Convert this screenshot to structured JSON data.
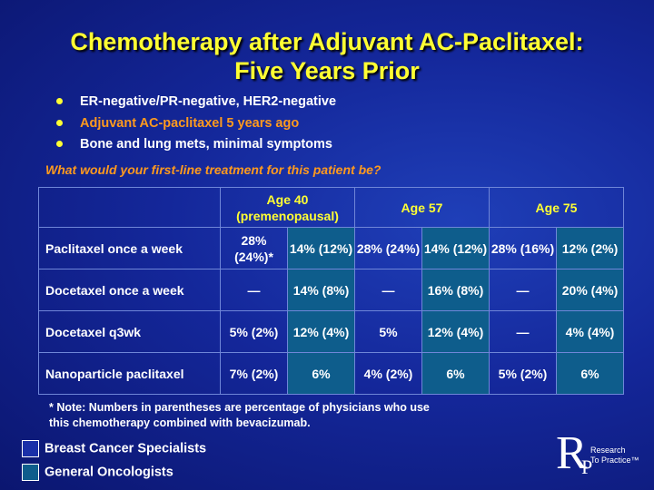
{
  "title_line1": "Chemotherapy after Adjuvant AC-Paclitaxel:",
  "title_line2": "Five Years Prior",
  "bullets": [
    {
      "text": "ER-negative/PR-negative, HER2-negative",
      "color": "#ffffff"
    },
    {
      "text": "Adjuvant AC-paclitaxel 5 years ago",
      "color": "#ff9a1e"
    },
    {
      "text": "Bone and lung mets, minimal symptoms",
      "color": "#ffffff"
    }
  ],
  "question": "What would your first-line treatment for this patient be?",
  "table": {
    "headers": [
      "Age 40 (premenopausal)",
      "Age 57",
      "Age 75"
    ],
    "rows": [
      {
        "label": "Paclitaxel once a week",
        "cells": [
          "28% (24%)*",
          "14% (12%)",
          "28% (24%)",
          "14% (12%)",
          "28% (16%)",
          "12% (2%)"
        ]
      },
      {
        "label": "Docetaxel once a week",
        "cells": [
          "—",
          "14% (8%)",
          "—",
          "16% (8%)",
          "—",
          "20% (4%)"
        ]
      },
      {
        "label": "Docetaxel q3wk",
        "cells": [
          "5% (2%)",
          "12% (4%)",
          "5%",
          "12% (4%)",
          "—",
          "4% (4%)"
        ]
      },
      {
        "label": "Nanoparticle paclitaxel",
        "cells": [
          "7% (2%)",
          "6%",
          "4% (2%)",
          "6%",
          "5% (2%)",
          "6%"
        ]
      }
    ]
  },
  "note_line1": "* Note: Numbers in parentheses are percentage of physicians who use",
  "note_line2": "this chemotherapy combined with bevacizumab.",
  "legend": [
    {
      "label": "Breast Cancer Specialists",
      "color": "#1a2fa8"
    },
    {
      "label": "General Oncologists",
      "color": "#0e5d8c"
    }
  ],
  "logo": {
    "mark_r": "R",
    "mark_p": "P",
    "text_line1": "Research",
    "text_line2": "To Practice™"
  }
}
